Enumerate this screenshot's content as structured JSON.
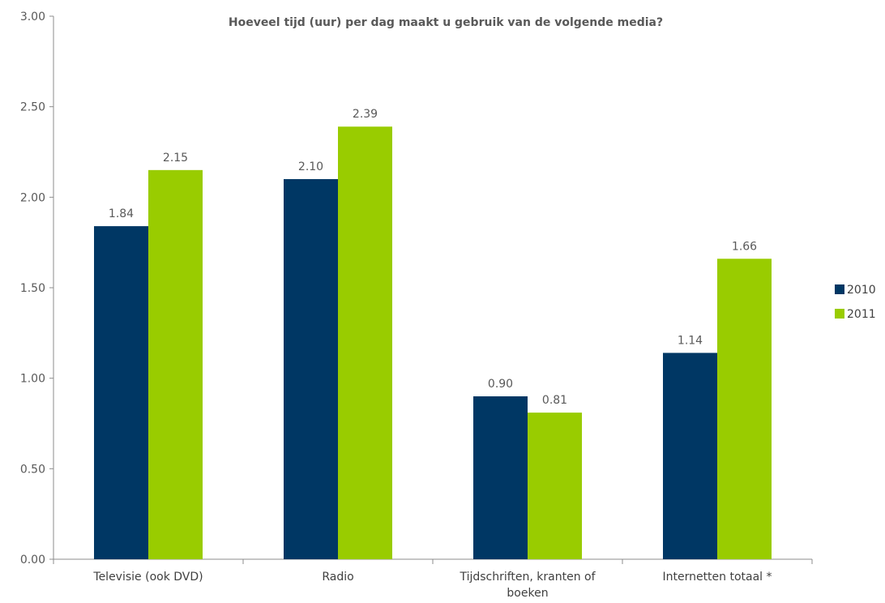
{
  "chart_data": {
    "type": "bar",
    "title": "Hoeveel tijd (uur) per dag maakt u gebruik van de volgende media?",
    "xlabel": "",
    "ylabel": "",
    "categories": [
      [
        "Televisie (ook DVD)"
      ],
      [
        "Radio"
      ],
      [
        "Tijdschriften, kranten of",
        "boeken"
      ],
      [
        "Internetten totaal *"
      ]
    ],
    "series": [
      {
        "name": "2010",
        "color": "#003764",
        "values": [
          1.84,
          2.1,
          0.9,
          1.14
        ],
        "labels": [
          "1.84",
          "2.10",
          "0.90",
          "1.14"
        ]
      },
      {
        "name": "2011",
        "color": "#99CC00",
        "values": [
          2.15,
          2.39,
          0.81,
          1.66
        ],
        "labels": [
          "2.15",
          "2.39",
          "0.81",
          "1.66"
        ]
      }
    ],
    "ylim": [
      0,
      3
    ],
    "yticks": [
      0,
      0.5,
      1,
      1.5,
      2,
      2.5,
      3
    ],
    "ytick_labels": [
      "0.00",
      "0.50",
      "1.00",
      "1.50",
      "2.00",
      "2.50",
      "3.00"
    ],
    "grid": false,
    "legend_position": "right"
  }
}
